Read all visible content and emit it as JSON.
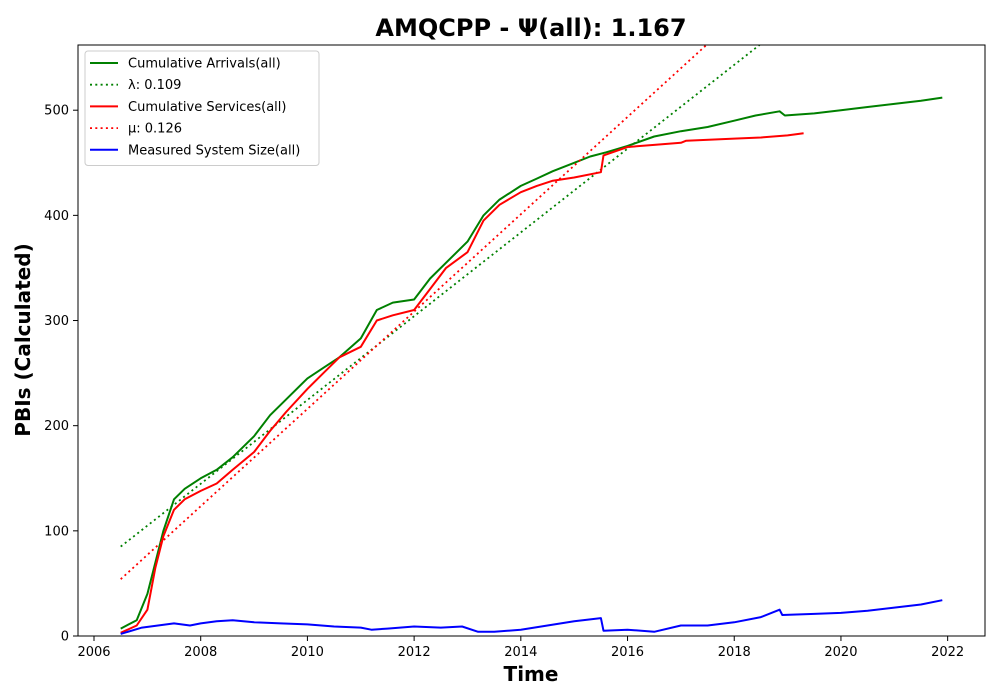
{
  "chart_data": {
    "type": "line",
    "title": "AMQCPP -  Ψ(all): 1.167",
    "xlabel": "Time",
    "ylabel": "PBIs (Calculated)",
    "xlim": [
      2005.7,
      2022.7
    ],
    "ylim": [
      0,
      562
    ],
    "xticks": [
      2006,
      2008,
      2010,
      2012,
      2014,
      2016,
      2018,
      2020,
      2022
    ],
    "yticks": [
      0,
      100,
      200,
      300,
      400,
      500
    ],
    "grid": false,
    "legend_position": "top-left",
    "series": [
      {
        "name": "Cumulative Arrivals(all)",
        "color": "#008000",
        "style": "solid",
        "x": [
          2006.5,
          2006.8,
          2007.0,
          2007.15,
          2007.3,
          2007.5,
          2007.7,
          2008.0,
          2008.3,
          2008.6,
          2009.0,
          2009.3,
          2009.6,
          2010.0,
          2010.3,
          2010.6,
          2011.0,
          2011.3,
          2011.6,
          2012.0,
          2012.3,
          2012.6,
          2013.0,
          2013.3,
          2013.6,
          2014.0,
          2014.3,
          2014.6,
          2015.0,
          2015.3,
          2015.6,
          2016.0,
          2016.5,
          2017.0,
          2017.5,
          2018.0,
          2018.4,
          2018.85,
          2018.95,
          2019.5,
          2020.0,
          2020.5,
          2021.0,
          2021.5,
          2021.9
        ],
        "values": [
          7,
          15,
          40,
          70,
          100,
          130,
          140,
          150,
          158,
          170,
          190,
          210,
          225,
          245,
          255,
          265,
          283,
          310,
          317,
          320,
          340,
          355,
          375,
          400,
          415,
          428,
          435,
          442,
          450,
          456,
          460,
          466,
          475,
          480,
          484,
          490,
          495,
          499,
          495,
          497,
          500,
          503,
          506,
          509,
          512
        ]
      },
      {
        "name": "λ: 0.109",
        "color": "#008000",
        "style": "dotted",
        "x": [
          2006.5,
          2018.5
        ],
        "values": [
          85,
          563
        ]
      },
      {
        "name": "Cumulative Services(all)",
        "color": "#ff0000",
        "style": "solid",
        "x": [
          2006.5,
          2006.8,
          2007.0,
          2007.15,
          2007.3,
          2007.5,
          2007.7,
          2008.0,
          2008.3,
          2008.6,
          2009.0,
          2009.3,
          2009.6,
          2010.0,
          2010.3,
          2010.6,
          2011.0,
          2011.3,
          2011.6,
          2012.0,
          2012.3,
          2012.6,
          2013.0,
          2013.3,
          2013.6,
          2014.0,
          2014.3,
          2014.6,
          2015.0,
          2015.5,
          2015.55,
          2016.0,
          2016.5,
          2017.0,
          2017.1,
          2018.0,
          2018.5,
          2019.0,
          2019.3
        ],
        "values": [
          3,
          10,
          25,
          65,
          95,
          120,
          130,
          138,
          145,
          158,
          175,
          195,
          213,
          235,
          250,
          265,
          275,
          300,
          305,
          310,
          330,
          350,
          365,
          395,
          410,
          422,
          428,
          433,
          436,
          441,
          457,
          465,
          467,
          469,
          471,
          473,
          474,
          476,
          478
        ]
      },
      {
        "name": "μ: 0.126",
        "color": "#ff0000",
        "style": "dotted",
        "x": [
          2006.5,
          2017.5
        ],
        "values": [
          54,
          563
        ]
      },
      {
        "name": "Measured System Size(all)",
        "color": "#0000ff",
        "style": "solid",
        "x": [
          2006.5,
          2006.9,
          2007.2,
          2007.5,
          2007.8,
          2008.0,
          2008.3,
          2008.6,
          2009.0,
          2009.5,
          2010.0,
          2010.5,
          2011.0,
          2011.2,
          2011.5,
          2012.0,
          2012.5,
          2012.9,
          2013.2,
          2013.5,
          2014.0,
          2014.5,
          2015.0,
          2015.5,
          2015.55,
          2016.0,
          2016.5,
          2017.0,
          2017.5,
          2018.0,
          2018.5,
          2018.85,
          2018.9,
          2019.5,
          2020.0,
          2020.5,
          2021.0,
          2021.5,
          2021.9
        ],
        "values": [
          2,
          8,
          10,
          12,
          10,
          12,
          14,
          15,
          13,
          12,
          11,
          9,
          8,
          6,
          7,
          9,
          8,
          9,
          4,
          4,
          6,
          10,
          14,
          17,
          5,
          6,
          4,
          10,
          10,
          13,
          18,
          25,
          20,
          21,
          22,
          24,
          27,
          30,
          34
        ]
      }
    ]
  }
}
